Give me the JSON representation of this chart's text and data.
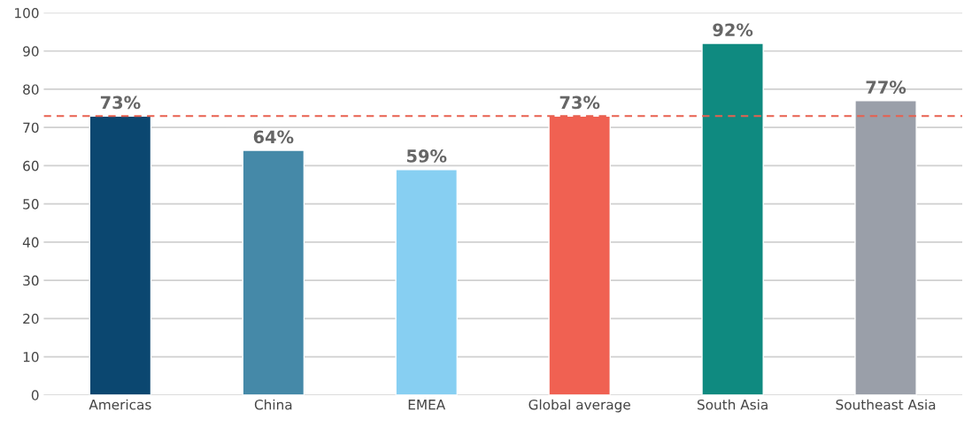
{
  "chart_data": {
    "type": "bar",
    "categories": [
      "Americas",
      "China",
      "EMEA",
      "Global average",
      "South Asia",
      "Southeast Asia"
    ],
    "values": [
      73,
      64,
      59,
      73,
      92,
      77
    ],
    "colors": [
      "#0b4770",
      "#4589a8",
      "#87cff2",
      "#f06152",
      "#0f8a80",
      "#9a9fa9"
    ],
    "value_labels": [
      "73%",
      "64%",
      "59%",
      "73%",
      "92%",
      "77%"
    ],
    "ylim": [
      0,
      100
    ],
    "yticks": [
      0,
      10,
      20,
      30,
      40,
      50,
      60,
      70,
      80,
      90,
      100
    ],
    "grid": "y",
    "legend": false,
    "ref_lines": [
      {
        "axis": "y",
        "value": 73,
        "color": "#e8604f",
        "line_style": "dashed"
      }
    ]
  }
}
